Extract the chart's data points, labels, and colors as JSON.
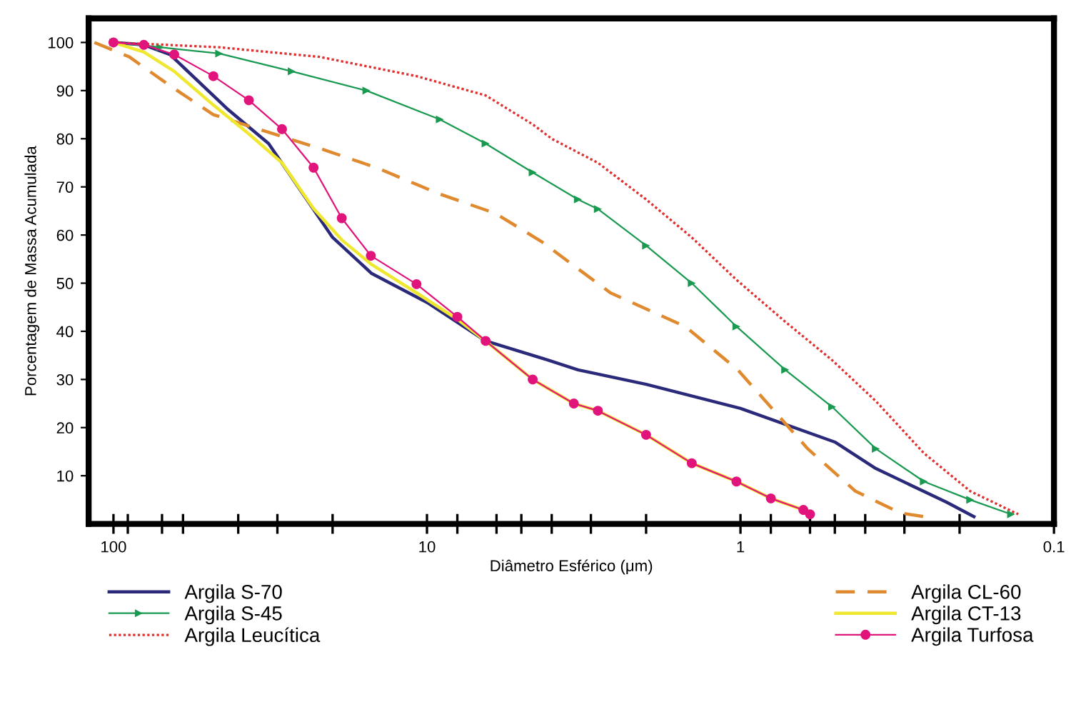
{
  "chart_data": {
    "type": "line",
    "xlabel": "Diâmetro Esférico (μm)",
    "ylabel": "Porcentagem de Massa Acumulada",
    "log": "x",
    "xlim": [
      120,
      0.1
    ],
    "ylim": [
      0,
      105
    ],
    "xticks": [
      100,
      {
        "value": 90,
        "label": null
      },
      {
        "value": 70,
        "label": null
      },
      {
        "value": 60,
        "label": null
      },
      {
        "value": 40,
        "label": null
      },
      {
        "value": 30,
        "label": null
      },
      {
        "value": 20,
        "label": null
      },
      10,
      {
        "value": 8,
        "label": null
      },
      {
        "value": 6,
        "label": null
      },
      {
        "value": 5,
        "label": null
      },
      {
        "value": 4,
        "label": null
      },
      {
        "value": 3,
        "label": null
      },
      {
        "value": 2,
        "label": null
      },
      1,
      {
        "value": 0.8,
        "label": null
      },
      {
        "value": 0.6,
        "label": null
      },
      {
        "value": 0.5,
        "label": null
      },
      {
        "value": 0.4,
        "label": null
      },
      {
        "value": 0.3,
        "label": null
      },
      {
        "value": 0.2,
        "label": null
      },
      0.1
    ],
    "yticks": [
      10,
      20,
      30,
      40,
      50,
      60,
      70,
      80,
      90,
      100
    ],
    "grid": false,
    "legend": "bottom",
    "series": [
      {
        "name": "Argila S-70",
        "color": "#2b2a7a",
        "marker": "none",
        "line_style": "solid",
        "x": [
          100,
          80,
          66,
          43,
          32,
          20,
          15,
          10,
          6.5,
          4.1,
          3.3,
          2,
          1,
          0.5,
          0.37,
          0.22,
          0.18
        ],
        "values": [
          100,
          99.5,
          97.5,
          86,
          79,
          59.5,
          52,
          46,
          38,
          34,
          32,
          29,
          24,
          17,
          11.5,
          4.5,
          1.5
        ]
      },
      {
        "name": "Argila S-45",
        "color": "#1a9a50",
        "marker": "triangle",
        "line_style": "solid",
        "x": [
          100,
          71,
          46,
          27,
          15.6,
          9.1,
          6.5,
          4.6,
          3.3,
          2.85,
          2,
          1.43,
          1.03,
          0.72,
          0.51,
          0.37,
          0.26,
          0.185,
          0.137
        ],
        "values": [
          100,
          99,
          97.7,
          94,
          90,
          84,
          79,
          73,
          67.4,
          65.4,
          57.8,
          50,
          41,
          32,
          24.3,
          15.6,
          8.8,
          5,
          2
        ]
      },
      {
        "name": "Argila Leucítica",
        "color": "#e03030",
        "marker": "none",
        "line_style": "dotted",
        "x": [
          100,
          46,
          22,
          10.8,
          6.5,
          4.6,
          4,
          2.85,
          2,
          1.43,
          1.03,
          0.72,
          0.51,
          0.37,
          0.26,
          0.185,
          0.14,
          0.13
        ],
        "values": [
          100,
          99,
          97,
          93,
          89,
          83,
          80,
          75,
          67.4,
          59.5,
          50.7,
          42,
          34,
          25.5,
          14.7,
          6.8,
          3,
          2
        ]
      },
      {
        "name": "Argila CL-60",
        "color": "#e08a30",
        "marker": "none",
        "line_style": "dashed",
        "x": [
          115,
          89,
          66,
          48,
          34.5,
          22,
          14.5,
          9.1,
          6.05,
          4.3,
          3.3,
          2.6,
          1.5,
          1.02,
          0.61,
          0.43,
          0.31,
          0.26
        ],
        "values": [
          100,
          97,
          91,
          85,
          82,
          78,
          74,
          68.5,
          64.5,
          58.6,
          53,
          48,
          41,
          32,
          15.6,
          6.8,
          2.3,
          1.5
        ]
      },
      {
        "name": "Argila CT-13",
        "color": "#f0e830",
        "marker": "none",
        "line_style": "solid",
        "x": [
          100,
          80,
          64,
          48,
          37,
          29,
          23,
          18.7,
          15.1,
          10.8,
          8,
          6.5,
          4.6,
          3.4,
          2.85,
          2,
          1.43,
          1.03,
          0.8,
          0.63
        ],
        "values": [
          100,
          98,
          94,
          87,
          81,
          75,
          65.5,
          59,
          54,
          48,
          42.5,
          38,
          30,
          25,
          23.5,
          18.5,
          12.6,
          8.8,
          5.3,
          2.9
        ]
      },
      {
        "name": "Argila Turfosa",
        "color": "#e0147a",
        "marker": "circle",
        "line_style": "solid",
        "x": [
          100,
          80,
          64,
          48,
          37,
          29,
          23,
          18.7,
          15.1,
          10.8,
          8,
          6.5,
          4.6,
          3.4,
          2.85,
          2,
          1.43,
          1.03,
          0.8,
          0.63,
          0.6
        ],
        "values": [
          100,
          99.5,
          97.5,
          93,
          88,
          82,
          74,
          63.5,
          55.7,
          49.8,
          43,
          38,
          30,
          25,
          23.5,
          18.5,
          12.6,
          8.8,
          5.3,
          2.9,
          2
        ]
      }
    ]
  }
}
